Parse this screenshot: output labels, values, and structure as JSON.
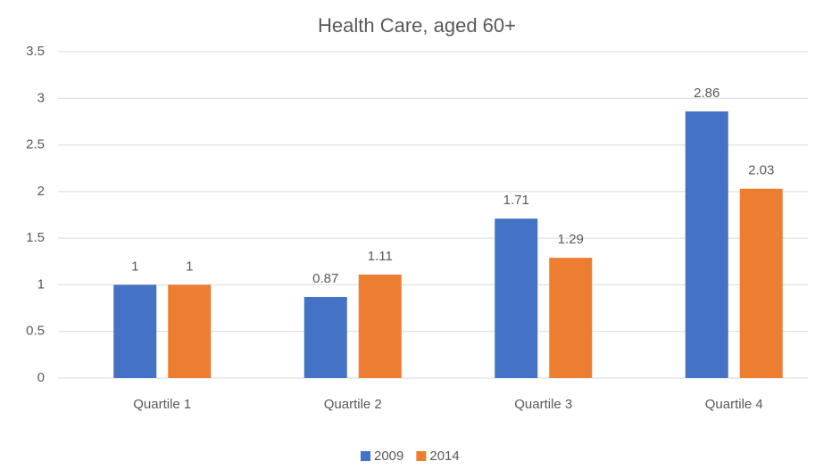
{
  "chart_data": {
    "type": "bar",
    "title": "Health Care, aged 60+",
    "categories": [
      "Quartile 1",
      "Quartile 2",
      "Quartile 3",
      "Quartile 4"
    ],
    "series": [
      {
        "name": "2009",
        "color": "#4472c4",
        "values": [
          1,
          0.87,
          1.71,
          2.86
        ]
      },
      {
        "name": "2014",
        "color": "#ed7d31",
        "values": [
          1,
          1.11,
          1.29,
          2.03
        ]
      }
    ],
    "ylim": [
      0,
      3.5
    ],
    "yticks": [
      0,
      0.5,
      1,
      1.5,
      2,
      2.5,
      3,
      3.5
    ],
    "grid": true,
    "legend": "bottom"
  }
}
